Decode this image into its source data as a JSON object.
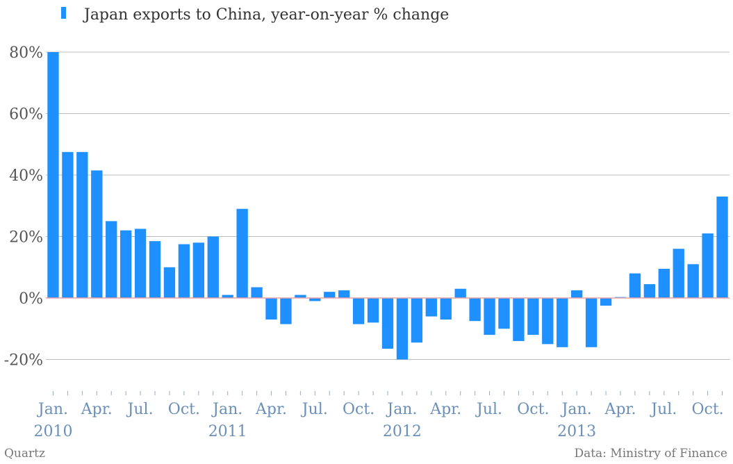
{
  "chart_data": {
    "type": "bar",
    "series": [
      {
        "name": "Japan exports to China, year-on-year % change",
        "color": "#1e90ff",
        "values": [
          80,
          47.5,
          47.5,
          41.5,
          25,
          22,
          22.5,
          18.5,
          10,
          17.5,
          18,
          20,
          1,
          29,
          3.5,
          -7,
          -8.5,
          1,
          -1,
          2,
          2.5,
          -8.5,
          -8,
          -16.5,
          -20,
          -14.5,
          -6,
          -7,
          3,
          -7.5,
          -12,
          -10,
          -14,
          -12,
          -15,
          -16,
          2.5,
          -16,
          -2.5,
          0.3,
          8,
          4.5,
          9.5,
          16,
          11,
          21,
          33
        ]
      }
    ],
    "x_start": "2010-01",
    "x_tick_labels": [
      "Jan.",
      "Apr.",
      "Jul.",
      "Oct.",
      "Jan.",
      "Apr.",
      "Jul.",
      "Oct.",
      "Jan.",
      "Apr.",
      "Jul.",
      "Oct.",
      "Jan.",
      "Apr.",
      "Jul.",
      "Oct."
    ],
    "year_labels": [
      "2010",
      "2011",
      "2012",
      "2013"
    ],
    "y_tick_labels": [
      "80%",
      "60%",
      "40%",
      "20%",
      "0%",
      "-20%"
    ],
    "ylim": [
      -30,
      80
    ],
    "zero_line_color": "#e8a0a8",
    "grid": true,
    "legend_position": "top-left"
  },
  "footer": {
    "source_left": "Quartz",
    "source_right": "Data: Ministry of Finance"
  }
}
